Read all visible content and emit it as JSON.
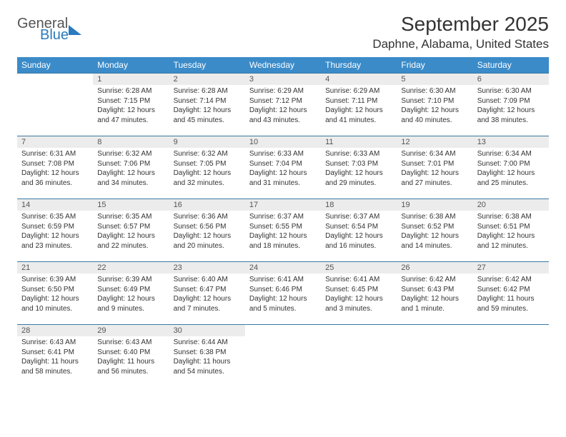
{
  "brand": {
    "line1": "General",
    "line2": "Blue"
  },
  "title": "September 2025",
  "location": "Daphne, Alabama, United States",
  "colors": {
    "header_bg": "#3b8bc9",
    "row_border": "#3b7aa5",
    "daynum_bg": "#ececec",
    "brand_blue": "#2b7bbf"
  },
  "weekdays": [
    "Sunday",
    "Monday",
    "Tuesday",
    "Wednesday",
    "Thursday",
    "Friday",
    "Saturday"
  ],
  "weeks": [
    [
      null,
      {
        "n": "1",
        "sunrise": "6:28 AM",
        "sunset": "7:15 PM",
        "daylight": "12 hours and 47 minutes."
      },
      {
        "n": "2",
        "sunrise": "6:28 AM",
        "sunset": "7:14 PM",
        "daylight": "12 hours and 45 minutes."
      },
      {
        "n": "3",
        "sunrise": "6:29 AM",
        "sunset": "7:12 PM",
        "daylight": "12 hours and 43 minutes."
      },
      {
        "n": "4",
        "sunrise": "6:29 AM",
        "sunset": "7:11 PM",
        "daylight": "12 hours and 41 minutes."
      },
      {
        "n": "5",
        "sunrise": "6:30 AM",
        "sunset": "7:10 PM",
        "daylight": "12 hours and 40 minutes."
      },
      {
        "n": "6",
        "sunrise": "6:30 AM",
        "sunset": "7:09 PM",
        "daylight": "12 hours and 38 minutes."
      }
    ],
    [
      {
        "n": "7",
        "sunrise": "6:31 AM",
        "sunset": "7:08 PM",
        "daylight": "12 hours and 36 minutes."
      },
      {
        "n": "8",
        "sunrise": "6:32 AM",
        "sunset": "7:06 PM",
        "daylight": "12 hours and 34 minutes."
      },
      {
        "n": "9",
        "sunrise": "6:32 AM",
        "sunset": "7:05 PM",
        "daylight": "12 hours and 32 minutes."
      },
      {
        "n": "10",
        "sunrise": "6:33 AM",
        "sunset": "7:04 PM",
        "daylight": "12 hours and 31 minutes."
      },
      {
        "n": "11",
        "sunrise": "6:33 AM",
        "sunset": "7:03 PM",
        "daylight": "12 hours and 29 minutes."
      },
      {
        "n": "12",
        "sunrise": "6:34 AM",
        "sunset": "7:01 PM",
        "daylight": "12 hours and 27 minutes."
      },
      {
        "n": "13",
        "sunrise": "6:34 AM",
        "sunset": "7:00 PM",
        "daylight": "12 hours and 25 minutes."
      }
    ],
    [
      {
        "n": "14",
        "sunrise": "6:35 AM",
        "sunset": "6:59 PM",
        "daylight": "12 hours and 23 minutes."
      },
      {
        "n": "15",
        "sunrise": "6:35 AM",
        "sunset": "6:57 PM",
        "daylight": "12 hours and 22 minutes."
      },
      {
        "n": "16",
        "sunrise": "6:36 AM",
        "sunset": "6:56 PM",
        "daylight": "12 hours and 20 minutes."
      },
      {
        "n": "17",
        "sunrise": "6:37 AM",
        "sunset": "6:55 PM",
        "daylight": "12 hours and 18 minutes."
      },
      {
        "n": "18",
        "sunrise": "6:37 AM",
        "sunset": "6:54 PM",
        "daylight": "12 hours and 16 minutes."
      },
      {
        "n": "19",
        "sunrise": "6:38 AM",
        "sunset": "6:52 PM",
        "daylight": "12 hours and 14 minutes."
      },
      {
        "n": "20",
        "sunrise": "6:38 AM",
        "sunset": "6:51 PM",
        "daylight": "12 hours and 12 minutes."
      }
    ],
    [
      {
        "n": "21",
        "sunrise": "6:39 AM",
        "sunset": "6:50 PM",
        "daylight": "12 hours and 10 minutes."
      },
      {
        "n": "22",
        "sunrise": "6:39 AM",
        "sunset": "6:49 PM",
        "daylight": "12 hours and 9 minutes."
      },
      {
        "n": "23",
        "sunrise": "6:40 AM",
        "sunset": "6:47 PM",
        "daylight": "12 hours and 7 minutes."
      },
      {
        "n": "24",
        "sunrise": "6:41 AM",
        "sunset": "6:46 PM",
        "daylight": "12 hours and 5 minutes."
      },
      {
        "n": "25",
        "sunrise": "6:41 AM",
        "sunset": "6:45 PM",
        "daylight": "12 hours and 3 minutes."
      },
      {
        "n": "26",
        "sunrise": "6:42 AM",
        "sunset": "6:43 PM",
        "daylight": "12 hours and 1 minute."
      },
      {
        "n": "27",
        "sunrise": "6:42 AM",
        "sunset": "6:42 PM",
        "daylight": "11 hours and 59 minutes."
      }
    ],
    [
      {
        "n": "28",
        "sunrise": "6:43 AM",
        "sunset": "6:41 PM",
        "daylight": "11 hours and 58 minutes."
      },
      {
        "n": "29",
        "sunrise": "6:43 AM",
        "sunset": "6:40 PM",
        "daylight": "11 hours and 56 minutes."
      },
      {
        "n": "30",
        "sunrise": "6:44 AM",
        "sunset": "6:38 PM",
        "daylight": "11 hours and 54 minutes."
      },
      null,
      null,
      null,
      null
    ]
  ],
  "labels": {
    "sunrise": "Sunrise:",
    "sunset": "Sunset:",
    "daylight": "Daylight:"
  }
}
